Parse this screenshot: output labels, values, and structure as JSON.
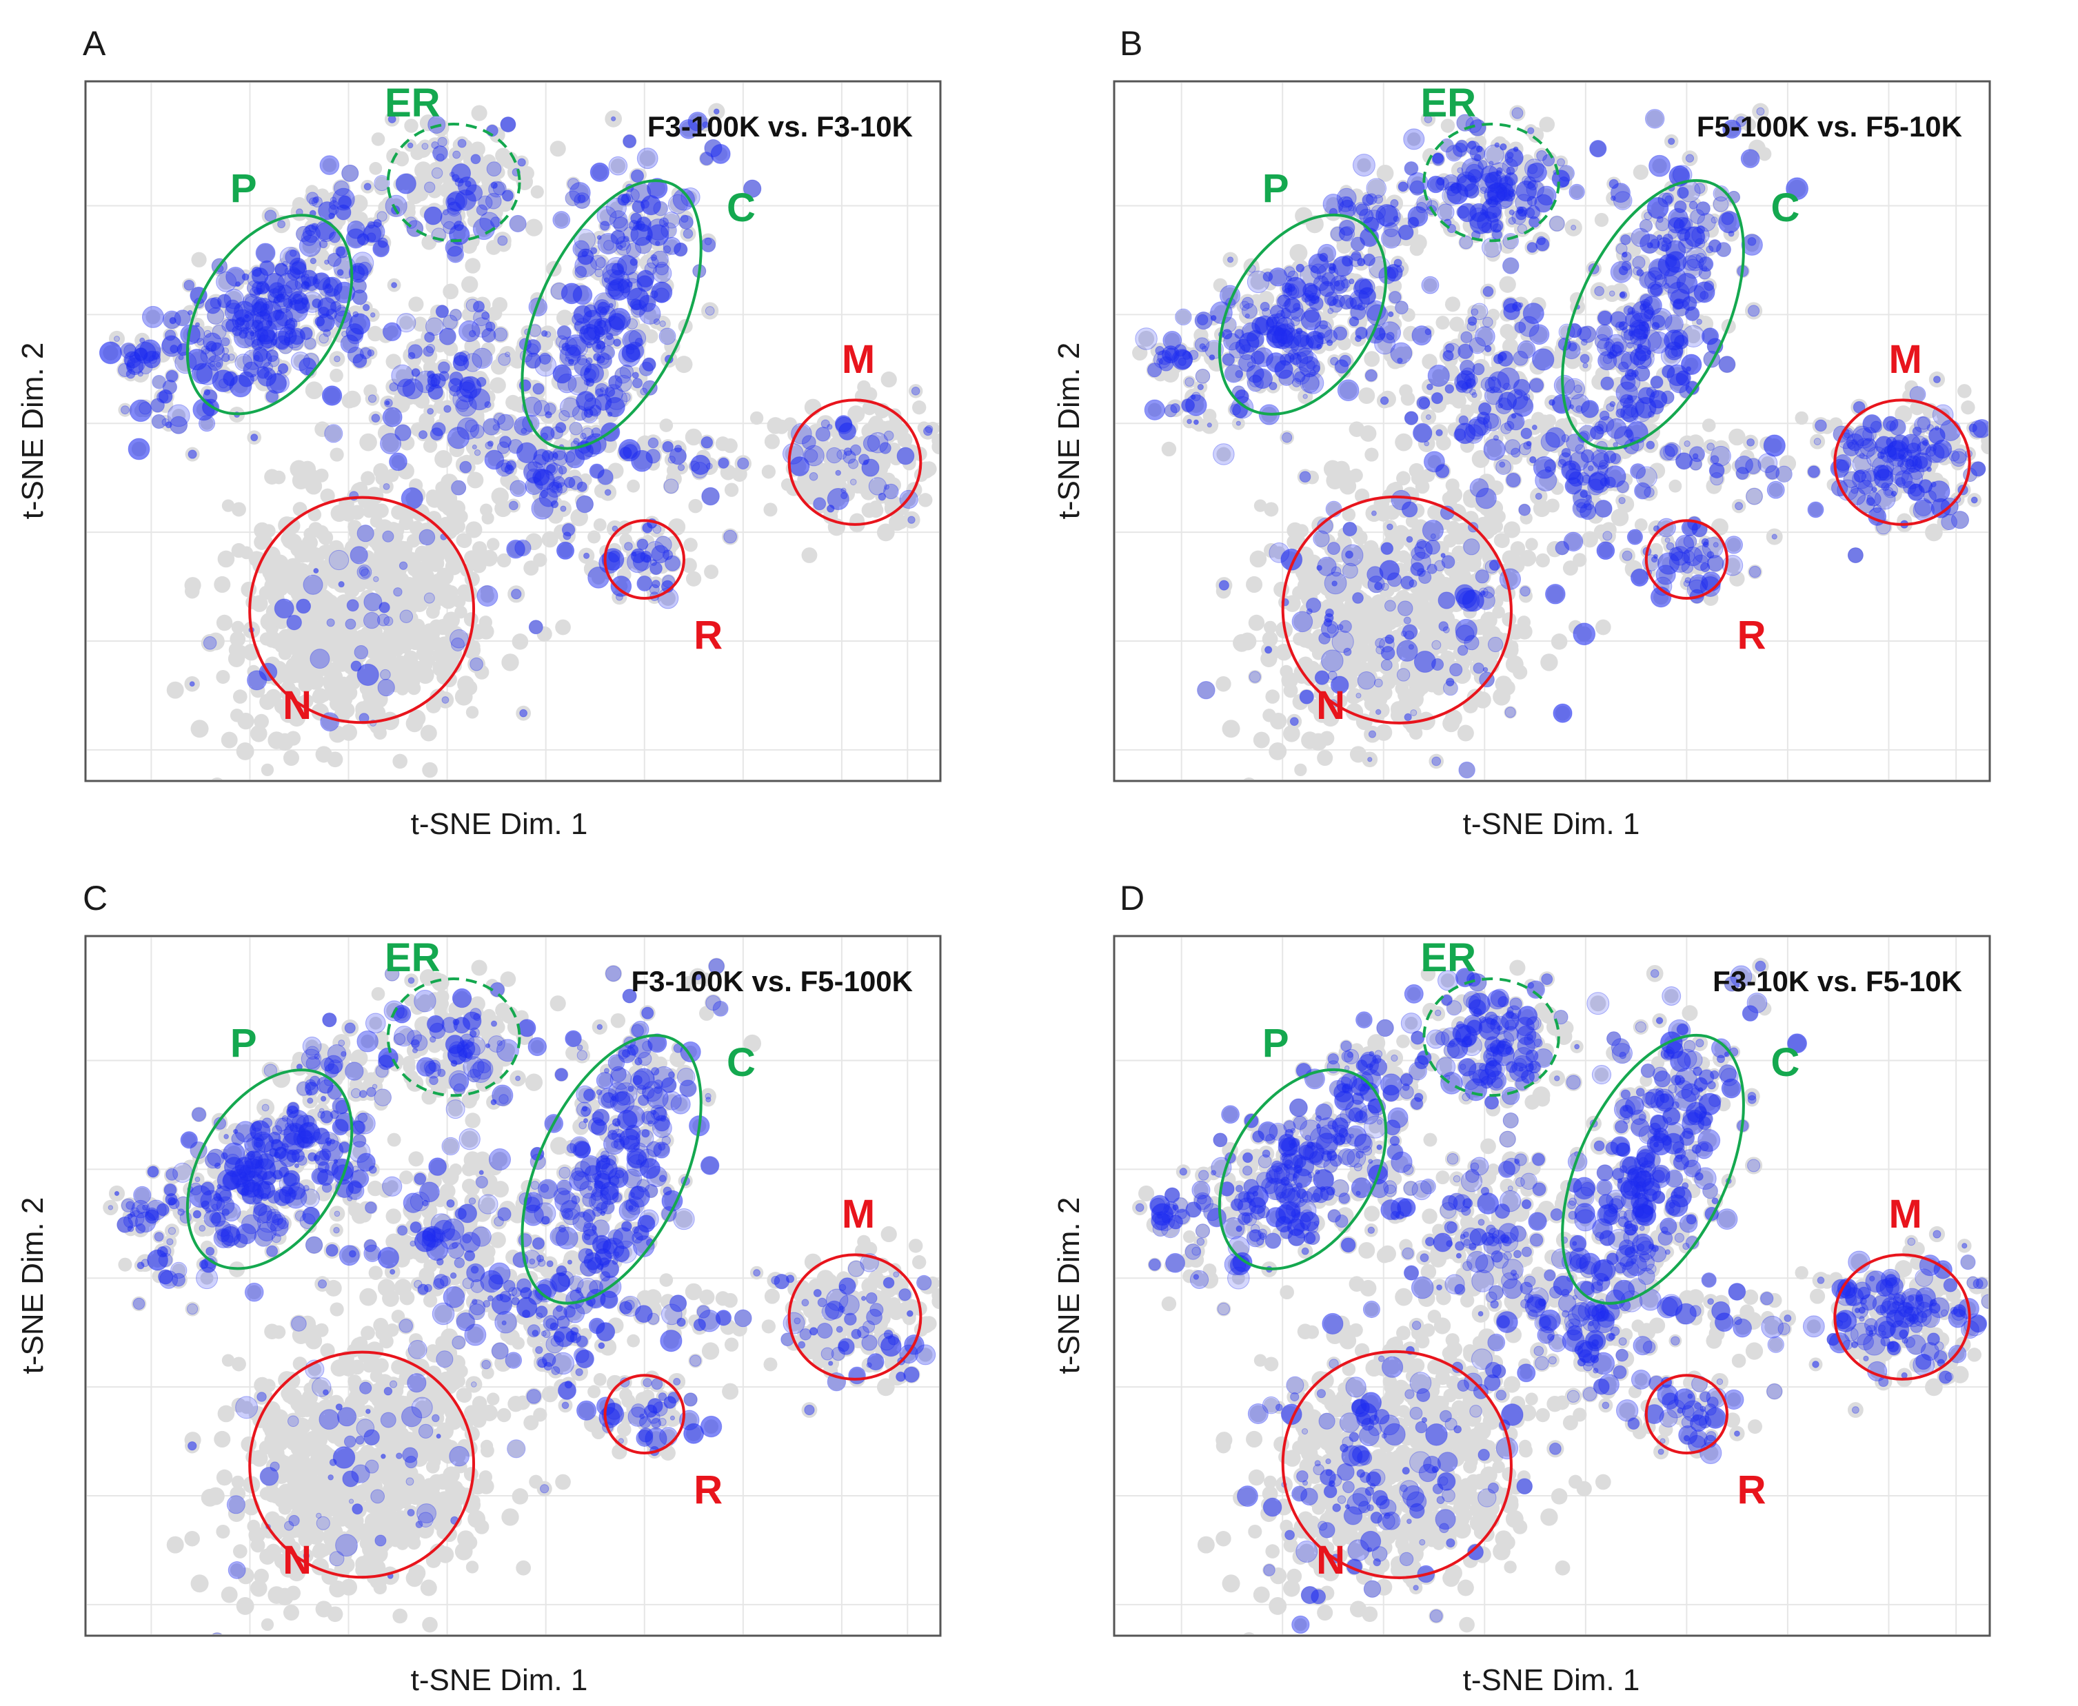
{
  "colors": {
    "background_point": "#dcdcdc",
    "highlight_point": "#1e2cf0",
    "organelle_green": "#14a84f",
    "organelle_red": "#e8141c"
  },
  "chart_data": [
    {
      "type": "scatter",
      "panel": "A",
      "title": "F3-100K vs. F3-10K",
      "xlabel": "t-SNE Dim. 1",
      "ylabel": "t-SNE Dim. 2",
      "grid": true,
      "axis_ticks_labeled": false,
      "regions": [
        {
          "label": "ER",
          "color": "green",
          "style": "dashed",
          "cx": 5.1,
          "cy": 6.2,
          "rx": 1.0,
          "ry": 0.75,
          "rot": 0
        },
        {
          "label": "P",
          "color": "green",
          "style": "solid",
          "cx": 2.3,
          "cy": 4.5,
          "rx": 1.05,
          "ry": 1.4,
          "rot": 32
        },
        {
          "label": "C",
          "color": "green",
          "style": "solid",
          "cx": 7.5,
          "cy": 4.5,
          "rx": 1.1,
          "ry": 1.85,
          "rot": 25
        },
        {
          "label": "M",
          "color": "red",
          "style": "solid",
          "cx": 11.2,
          "cy": 2.6,
          "rx": 1.0,
          "ry": 0.8,
          "rot": 0
        },
        {
          "label": "N",
          "color": "red",
          "style": "solid",
          "cx": 3.7,
          "cy": 0.7,
          "rx": 1.7,
          "ry": 1.45,
          "rot": 25
        },
        {
          "label": "R",
          "color": "red",
          "style": "solid",
          "cx": 8.0,
          "cy": 1.35,
          "rx": 0.6,
          "ry": 0.5,
          "rot": 0
        }
      ],
      "highlight_intensity": {
        "ER": 0.35,
        "P": 0.9,
        "C": 0.85,
        "M": 0.25,
        "N": 0.08,
        "R": 0.55,
        "bridge": 0.45
      }
    },
    {
      "type": "scatter",
      "panel": "B",
      "title": "F5-100K vs. F5-10K",
      "xlabel": "t-SNE Dim. 1",
      "ylabel": "t-SNE Dim. 2",
      "grid": true,
      "axis_ticks_labeled": false,
      "regions": [
        {
          "label": "ER",
          "color": "green",
          "style": "dashed",
          "cx": 5.1,
          "cy": 6.2,
          "rx": 1.0,
          "ry": 0.75,
          "rot": 0
        },
        {
          "label": "P",
          "color": "green",
          "style": "solid",
          "cx": 2.3,
          "cy": 4.5,
          "rx": 1.05,
          "ry": 1.4,
          "rot": 32
        },
        {
          "label": "C",
          "color": "green",
          "style": "solid",
          "cx": 7.5,
          "cy": 4.5,
          "rx": 1.1,
          "ry": 1.85,
          "rot": 25
        },
        {
          "label": "M",
          "color": "red",
          "style": "solid",
          "cx": 11.2,
          "cy": 2.6,
          "rx": 1.0,
          "ry": 0.8,
          "rot": 0
        },
        {
          "label": "N",
          "color": "red",
          "style": "solid",
          "cx": 3.7,
          "cy": 0.7,
          "rx": 1.7,
          "ry": 1.45,
          "rot": 25
        },
        {
          "label": "R",
          "color": "red",
          "style": "solid",
          "cx": 8.0,
          "cy": 1.35,
          "rx": 0.6,
          "ry": 0.5,
          "rot": 0
        }
      ],
      "highlight_intensity": {
        "ER": 0.75,
        "P": 0.7,
        "C": 0.85,
        "M": 0.65,
        "N": 0.18,
        "R": 0.85,
        "bridge": 0.5
      }
    },
    {
      "type": "scatter",
      "panel": "C",
      "title": "F3-100K vs. F5-100K",
      "xlabel": "t-SNE Dim. 1",
      "ylabel": "t-SNE Dim. 2",
      "grid": true,
      "axis_ticks_labeled": false,
      "regions": [
        {
          "label": "ER",
          "color": "green",
          "style": "dashed",
          "cx": 5.1,
          "cy": 6.2,
          "rx": 1.0,
          "ry": 0.75,
          "rot": 0
        },
        {
          "label": "P",
          "color": "green",
          "style": "solid",
          "cx": 2.3,
          "cy": 4.5,
          "rx": 1.05,
          "ry": 1.4,
          "rot": 32
        },
        {
          "label": "C",
          "color": "green",
          "style": "solid",
          "cx": 7.5,
          "cy": 4.5,
          "rx": 1.1,
          "ry": 1.85,
          "rot": 25
        },
        {
          "label": "M",
          "color": "red",
          "style": "solid",
          "cx": 11.2,
          "cy": 2.6,
          "rx": 1.0,
          "ry": 0.8,
          "rot": 0
        },
        {
          "label": "N",
          "color": "red",
          "style": "solid",
          "cx": 3.7,
          "cy": 0.7,
          "rx": 1.7,
          "ry": 1.45,
          "rot": 25
        },
        {
          "label": "R",
          "color": "red",
          "style": "solid",
          "cx": 8.0,
          "cy": 1.35,
          "rx": 0.6,
          "ry": 0.5,
          "rot": 0
        }
      ],
      "highlight_intensity": {
        "ER": 0.4,
        "P": 0.85,
        "C": 0.85,
        "M": 0.3,
        "N": 0.1,
        "R": 0.55,
        "bridge": 0.45
      }
    },
    {
      "type": "scatter",
      "panel": "D",
      "title": "F3-10K vs. F5-10K",
      "xlabel": "t-SNE Dim. 1",
      "ylabel": "t-SNE Dim. 2",
      "grid": true,
      "axis_ticks_labeled": false,
      "regions": [
        {
          "label": "ER",
          "color": "green",
          "style": "dashed",
          "cx": 5.1,
          "cy": 6.2,
          "rx": 1.0,
          "ry": 0.75,
          "rot": 0
        },
        {
          "label": "P",
          "color": "green",
          "style": "solid",
          "cx": 2.3,
          "cy": 4.5,
          "rx": 1.05,
          "ry": 1.4,
          "rot": 32
        },
        {
          "label": "C",
          "color": "green",
          "style": "solid",
          "cx": 7.5,
          "cy": 4.5,
          "rx": 1.1,
          "ry": 1.85,
          "rot": 25
        },
        {
          "label": "M",
          "color": "red",
          "style": "solid",
          "cx": 11.2,
          "cy": 2.6,
          "rx": 1.0,
          "ry": 0.8,
          "rot": 0
        },
        {
          "label": "N",
          "color": "red",
          "style": "solid",
          "cx": 3.7,
          "cy": 0.7,
          "rx": 1.7,
          "ry": 1.45,
          "rot": 25
        },
        {
          "label": "R",
          "color": "red",
          "style": "solid",
          "cx": 8.0,
          "cy": 1.35,
          "rx": 0.6,
          "ry": 0.5,
          "rot": 0
        }
      ],
      "highlight_intensity": {
        "ER": 0.7,
        "P": 0.75,
        "C": 0.85,
        "M": 0.6,
        "N": 0.2,
        "R": 0.75,
        "bridge": 0.5
      }
    }
  ]
}
